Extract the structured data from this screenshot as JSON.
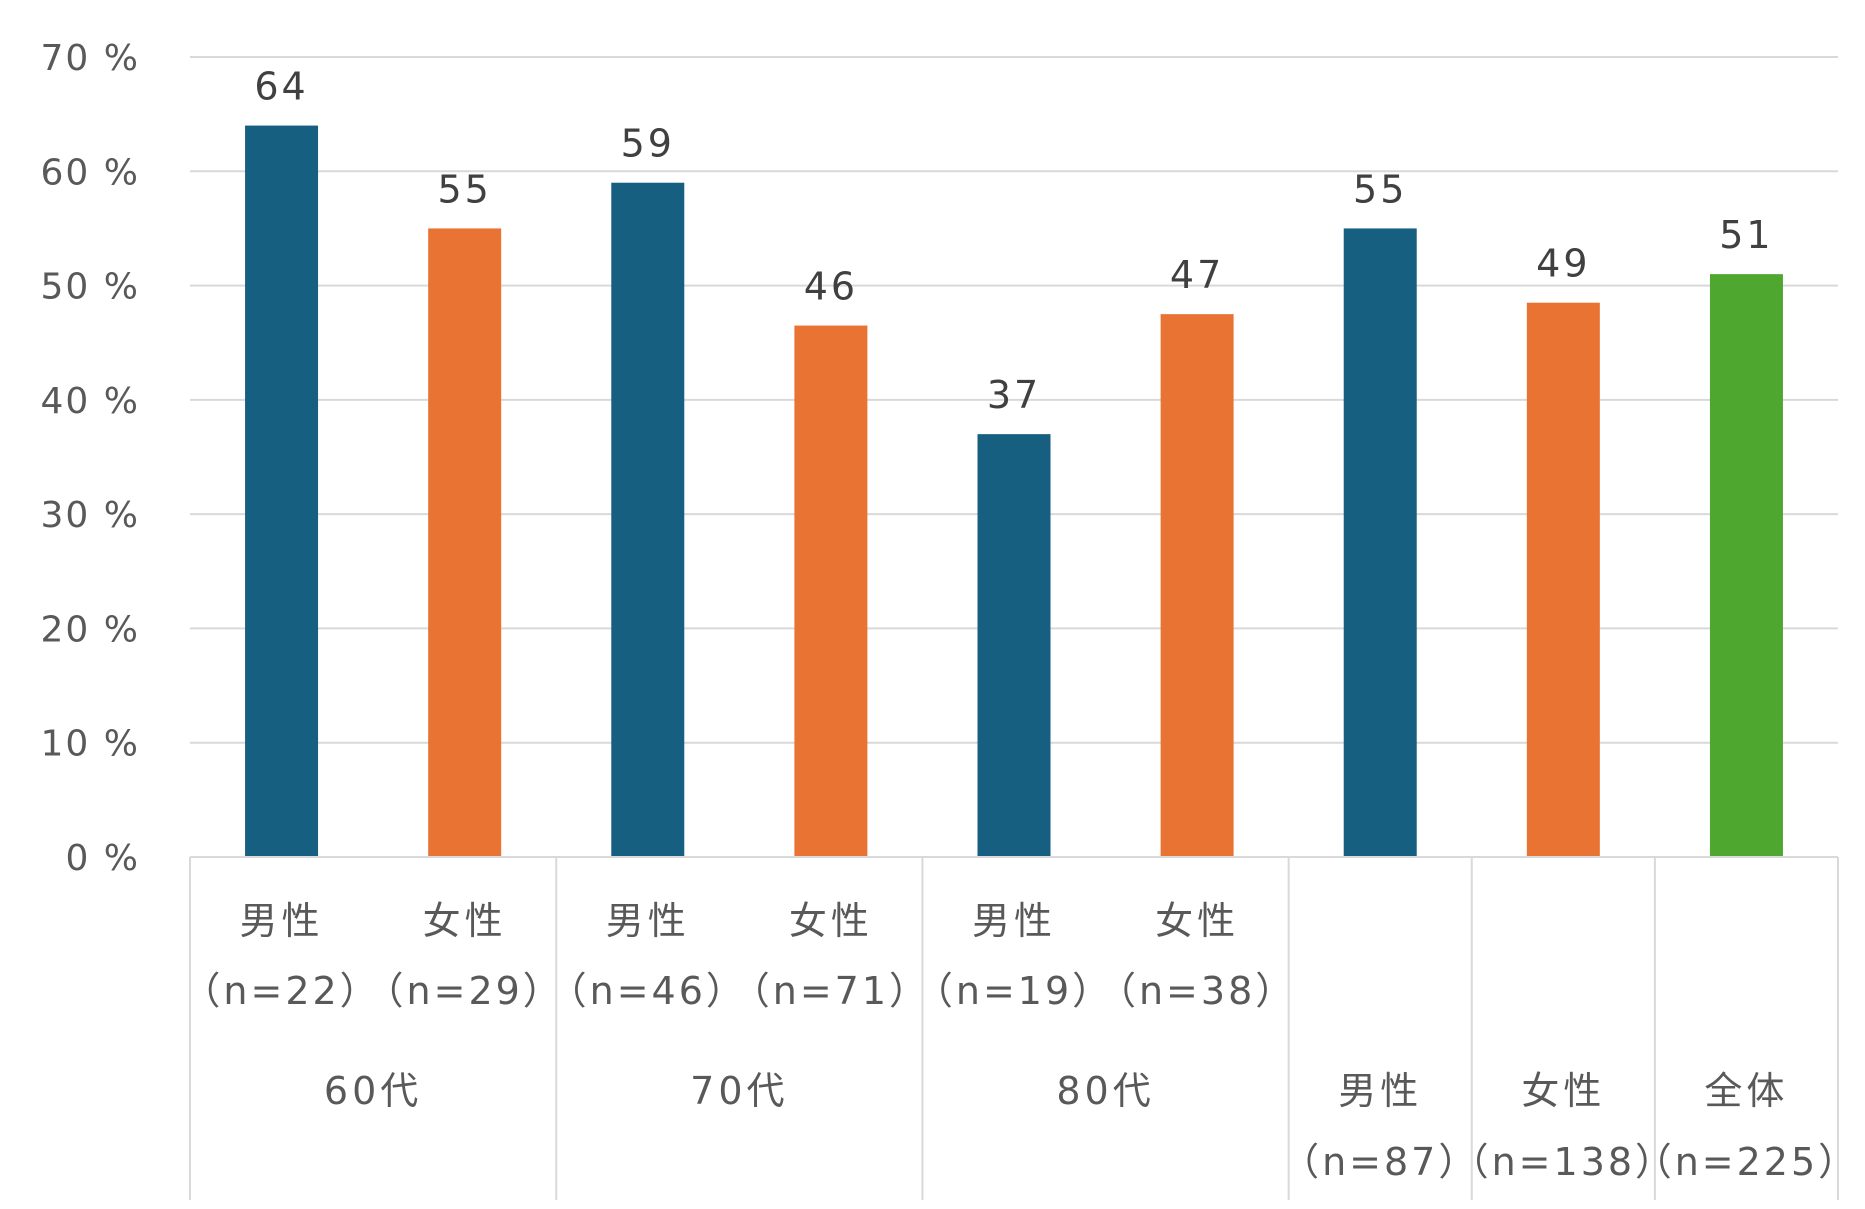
{
  "chart_data": {
    "type": "bar",
    "ylim": [
      0,
      70
    ],
    "yticks": [
      0,
      10,
      20,
      30,
      40,
      50,
      60,
      70
    ],
    "ytick_suffix": "%",
    "grid": true,
    "categories": [
      {
        "label": "男性",
        "n": "（n=22）",
        "group": "60代",
        "value": 64,
        "display": "64",
        "color": "#175f81"
      },
      {
        "label": "女性",
        "n": "（n=29）",
        "group": "60代",
        "value": 55,
        "display": "55",
        "color": "#e87332"
      },
      {
        "label": "男性",
        "n": "（n=46）",
        "group": "70代",
        "value": 59,
        "display": "59",
        "color": "#175f81"
      },
      {
        "label": "女性",
        "n": "（n=71）",
        "group": "70代",
        "value": 46.5,
        "display": "46",
        "color": "#e87332"
      },
      {
        "label": "男性",
        "n": "（n=19）",
        "group": "80代",
        "value": 37,
        "display": "37",
        "color": "#175f81"
      },
      {
        "label": "女性",
        "n": "（n=38）",
        "group": "80代",
        "value": 47.5,
        "display": "47",
        "color": "#e87332"
      },
      {
        "label": "男性",
        "n": "（n=87）",
        "group": "",
        "value": 55,
        "display": "55",
        "color": "#175f81"
      },
      {
        "label": "女性",
        "n": "（n=138）",
        "group": "",
        "value": 48.5,
        "display": "49",
        "color": "#e87332"
      },
      {
        "label": "全体",
        "n": "（n=225）",
        "group": "",
        "value": 51,
        "display": "51",
        "color": "#4ea72e"
      }
    ],
    "groups": [
      "60代",
      "70代",
      "80代"
    ]
  }
}
